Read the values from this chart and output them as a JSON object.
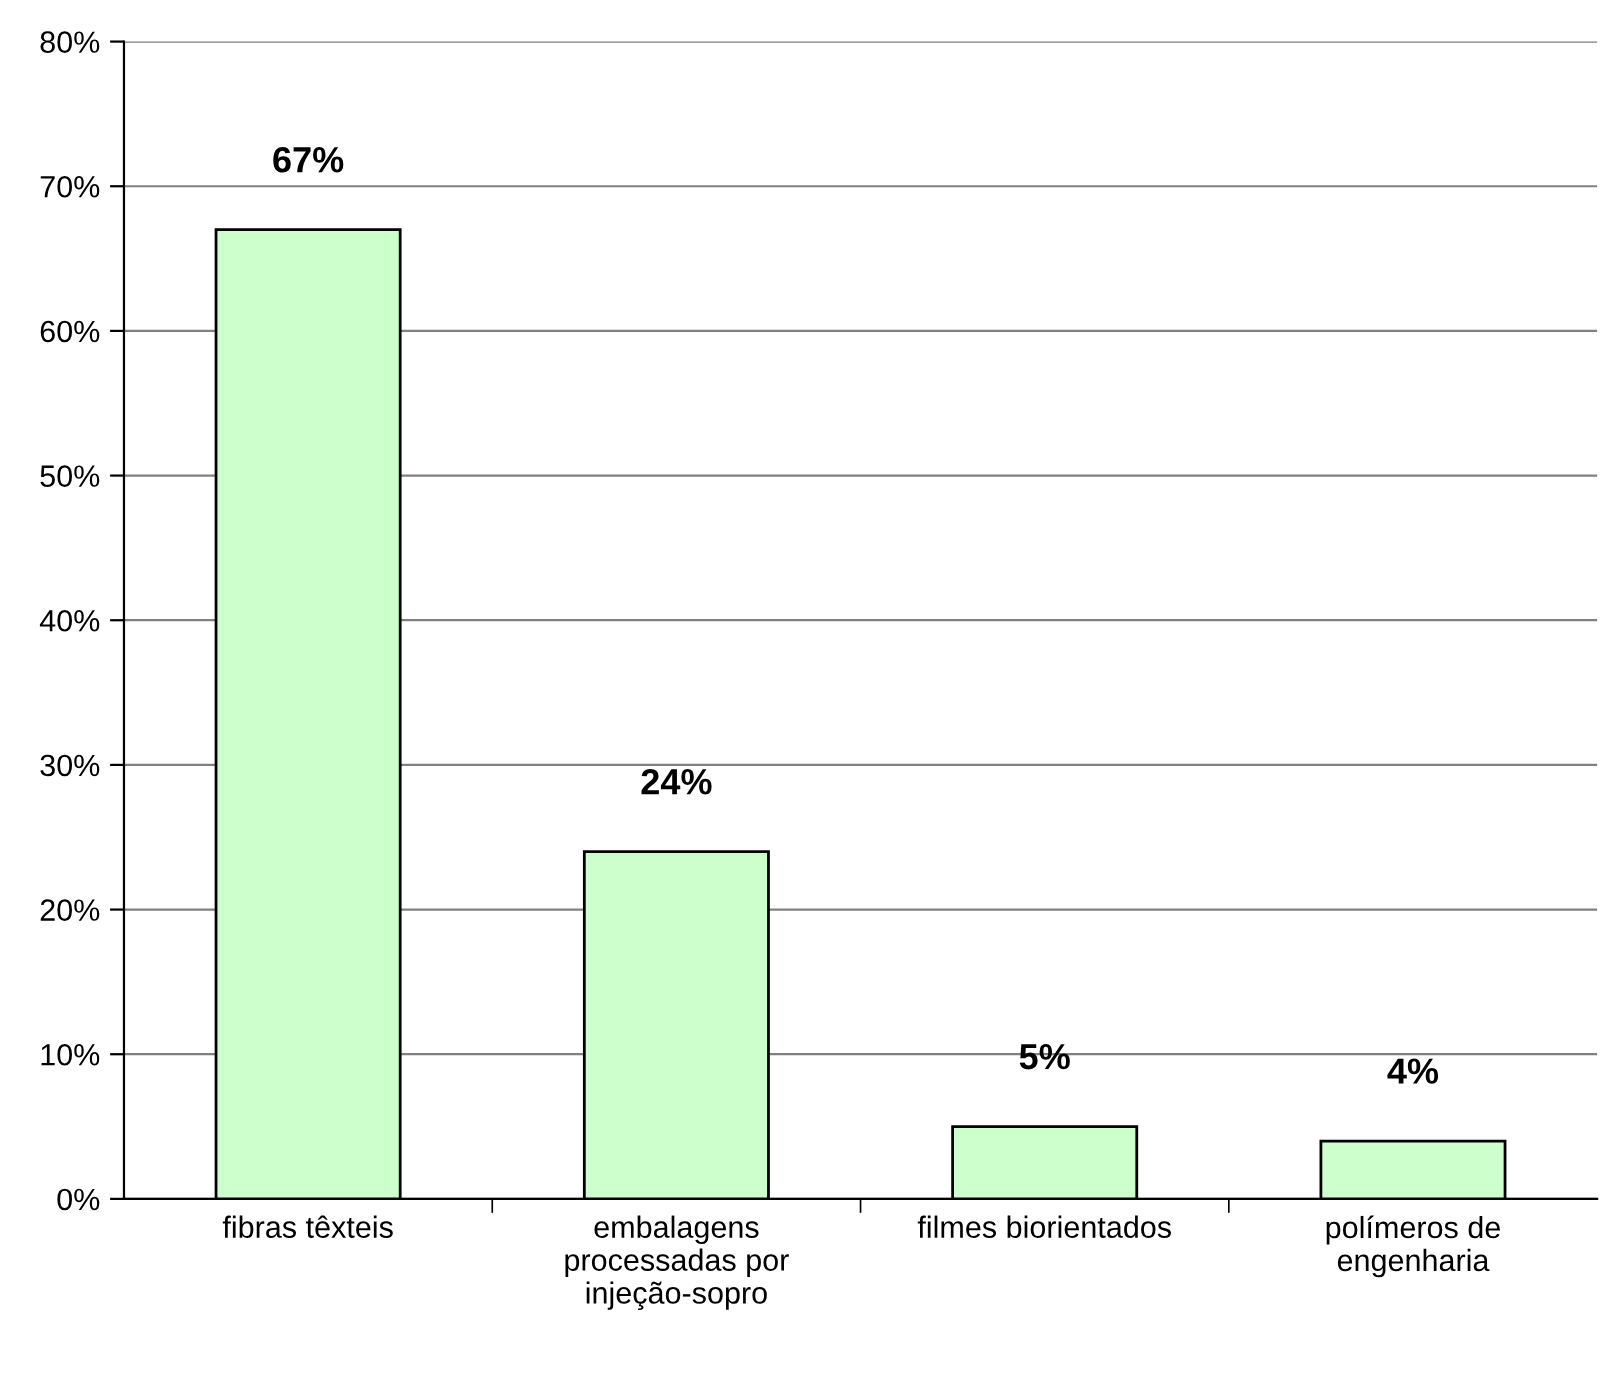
{
  "chart_data": {
    "type": "bar",
    "categories": [
      "fibras têxteis",
      "embalagens\nprocessadas por\ninjeção-sopro",
      "filmes biorientados",
      "polímeros de\nengenharia"
    ],
    "values": [
      67,
      24,
      5,
      4
    ],
    "value_labels": [
      "67%",
      "24%",
      "5%",
      "4%"
    ],
    "color": "#ccffcc",
    "ylim": [
      0,
      80
    ],
    "yticks": [
      {
        "value": 0,
        "label": "0%"
      },
      {
        "value": 10,
        "label": "10%"
      },
      {
        "value": 20,
        "label": "20%"
      },
      {
        "value": 30,
        "label": "30%"
      },
      {
        "value": 40,
        "label": "40%"
      },
      {
        "value": 50,
        "label": "50%"
      },
      {
        "value": 60,
        "label": "60%"
      },
      {
        "value": 70,
        "label": "70%"
      },
      {
        "value": 80,
        "label": "80%"
      }
    ],
    "grid": "y"
  }
}
